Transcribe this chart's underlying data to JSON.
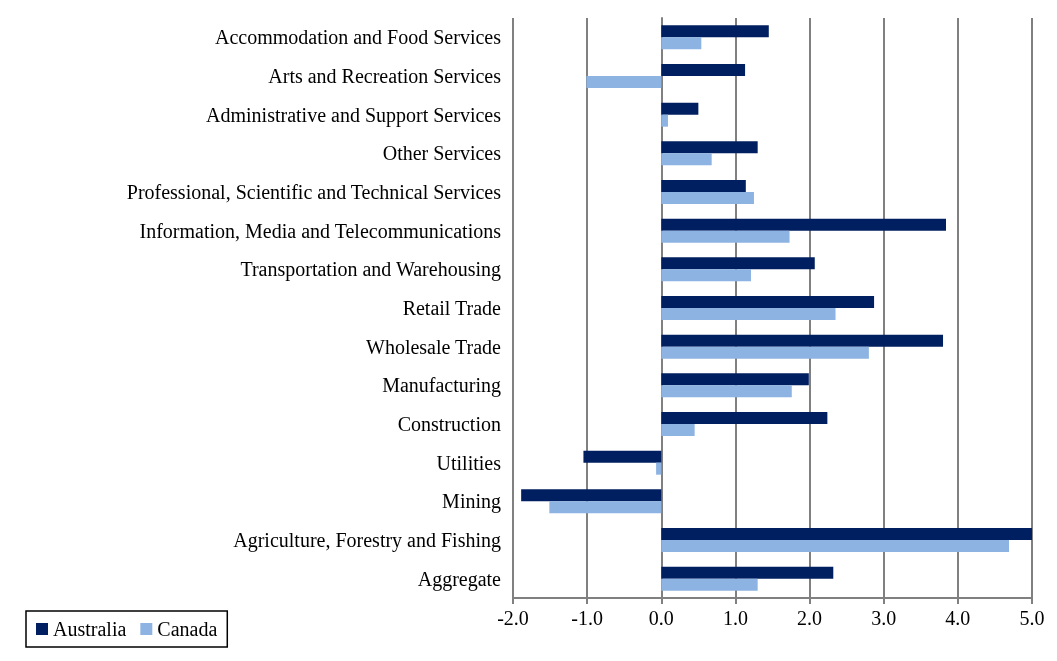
{
  "chart_data": {
    "type": "bar",
    "orientation": "horizontal",
    "categories": [
      "Accommodation and Food Services",
      "Arts and Recreation Services",
      "Administrative and Support Services",
      "Other Services",
      "Professional, Scientific and Technical Services",
      "Information, Media and Telecommunications",
      "Transportation and Warehousing",
      "Retail Trade",
      "Wholesale Trade",
      "Manufacturing",
      "Construction",
      "Utilities",
      "Mining",
      "Agriculture, Forestry and Fishing",
      "Aggregate"
    ],
    "series": [
      {
        "name": "Australia",
        "color": "#001f60",
        "values": [
          1.45,
          1.13,
          0.5,
          1.3,
          1.14,
          3.84,
          2.07,
          2.87,
          3.8,
          1.99,
          2.24,
          -1.05,
          -1.89,
          5.0,
          2.32
        ]
      },
      {
        "name": "Canada",
        "color": "#8db3e2",
        "values": [
          0.54,
          -1.01,
          0.09,
          0.68,
          1.25,
          1.73,
          1.21,
          2.35,
          2.8,
          1.76,
          0.45,
          -0.07,
          -1.51,
          4.69,
          1.3
        ]
      }
    ],
    "xlim": [
      -2,
      5
    ],
    "xticks": [
      {
        "value": -2,
        "label": "-2.0"
      },
      {
        "value": -1,
        "label": "-1.0"
      },
      {
        "value": 0,
        "label": "0.0"
      },
      {
        "value": 1,
        "label": "1.0"
      },
      {
        "value": 2,
        "label": "2.0"
      },
      {
        "value": 3,
        "label": "3.0"
      },
      {
        "value": 4,
        "label": "4.0"
      },
      {
        "value": 5,
        "label": "5.0"
      }
    ],
    "grid": "x",
    "legend": "bottom left"
  }
}
